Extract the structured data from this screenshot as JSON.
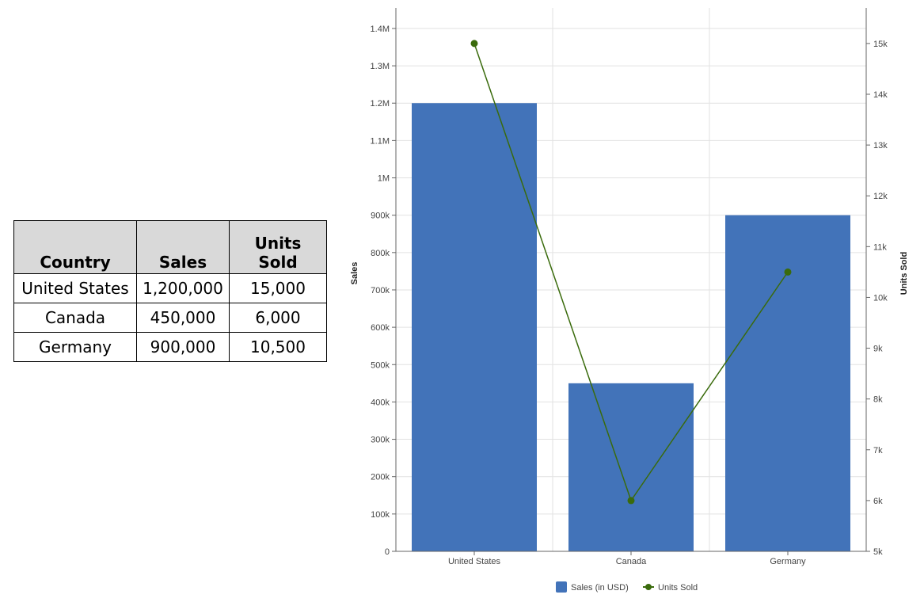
{
  "table": {
    "headers": [
      "Country",
      "Sales",
      "Units Sold"
    ],
    "rows": [
      [
        "United States",
        "1,200,000",
        "15,000"
      ],
      [
        "Canada",
        "450,000",
        "6,000"
      ],
      [
        "Germany",
        "900,000",
        "10,500"
      ]
    ]
  },
  "chart_data": {
    "type": "bar",
    "categories": [
      "United States",
      "Canada",
      "Germany"
    ],
    "series": [
      {
        "name": "Sales (in USD)",
        "type": "bar",
        "axis": "left",
        "color": "#4273b9",
        "values": [
          1200000,
          450000,
          900000
        ]
      },
      {
        "name": "Units Sold",
        "type": "line",
        "axis": "right",
        "color": "#3a6b0c",
        "values": [
          15000,
          6000,
          10500
        ]
      }
    ],
    "ylabel": "Sales",
    "y2label": "Units Sold",
    "ylim": [
      0,
      1455000
    ],
    "y2lim": [
      5000,
      15700
    ],
    "yticks": [
      0,
      100000,
      200000,
      300000,
      400000,
      500000,
      600000,
      700000,
      800000,
      900000,
      1000000,
      1100000,
      1200000,
      1300000,
      1400000
    ],
    "yticklabels": [
      "0",
      "100k",
      "200k",
      "300k",
      "400k",
      "500k",
      "600k",
      "700k",
      "800k",
      "900k",
      "1M",
      "1.1M",
      "1.2M",
      "1.3M",
      "1.4M"
    ],
    "y2ticks": [
      5000,
      6000,
      7000,
      8000,
      9000,
      10000,
      11000,
      12000,
      13000,
      14000,
      15000
    ],
    "y2ticklabels": [
      "5k",
      "6k",
      "7k",
      "8k",
      "9k",
      "10k",
      "11k",
      "12k",
      "13k",
      "14k",
      "15k"
    ],
    "grid": true,
    "legend": "bottom"
  }
}
